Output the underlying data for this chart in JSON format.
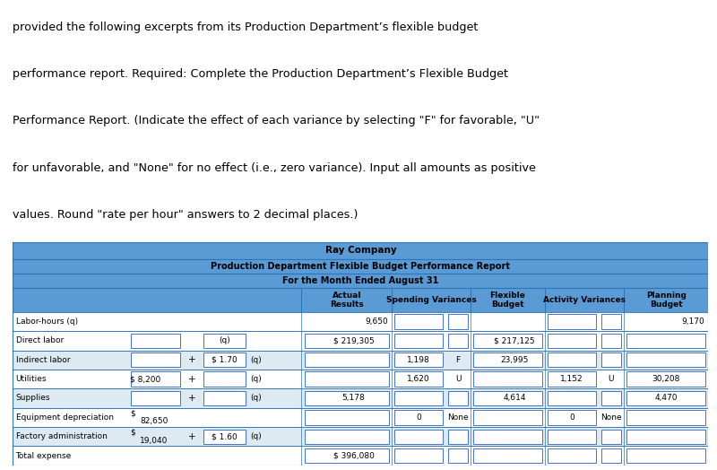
{
  "intro_text": [
    "provided the following excerpts from its Production Department’s flexible budget",
    "performance report. Required: Complete the Production Department’s Flexible Budget",
    "Performance Report. (Indicate the effect of each variance by selecting \"F\" for favorable, \"U\"",
    "for unfavorable, and \"None\" for no effect (i.e., zero variance). Input all amounts as positive",
    "values. Round \"rate per hour\" answers to 2 decimal places.)"
  ],
  "table_title1": "Ray Company",
  "table_title2": "Production Department Flexible Budget Performance Report",
  "table_title3": "For the Month Ended August 31",
  "header_bg": "#5B9BD5",
  "row_bg_light": "#DEEAF1",
  "row_bg_white": "#FFFFFF",
  "table_border": "#2E75B6",
  "rows": [
    {
      "label": "Labor-hours (q)",
      "f1": "",
      "f2": "",
      "f3": "",
      "f4": "",
      "actual": "9,650",
      "spend_var": "",
      "spend_var_label": "",
      "flex_budget": "",
      "act_var": "",
      "act_var_label": "",
      "plan_budget": "9,170"
    },
    {
      "label": "Direct labor",
      "f1": "",
      "f2": "",
      "f3": "(q)",
      "f4": "",
      "actual": "$ 219,305",
      "spend_var": "",
      "spend_var_label": "",
      "flex_budget": "$ 217,125",
      "act_var": "",
      "act_var_label": "",
      "plan_budget": ""
    },
    {
      "label": "Indirect labor",
      "f1": "",
      "f2": "+",
      "f3": "$ 1.70",
      "f4": "(q)",
      "actual": "",
      "spend_var": "1,198",
      "spend_var_label": "F",
      "flex_budget": "23,995",
      "act_var": "",
      "act_var_label": "",
      "plan_budget": ""
    },
    {
      "label": "Utilities",
      "f1": "$ 8,200",
      "f2": "+",
      "f3": "",
      "f4": "(q)",
      "actual": "",
      "spend_var": "1,620",
      "spend_var_label": "U",
      "flex_budget": "",
      "act_var": "1,152",
      "act_var_label": "U",
      "plan_budget": "30,208"
    },
    {
      "label": "Supplies",
      "f1": "",
      "f2": "+",
      "f3": "",
      "f4": "(q)",
      "actual": "5,178",
      "spend_var": "",
      "spend_var_label": "",
      "flex_budget": "4,614",
      "act_var": "",
      "act_var_label": "",
      "plan_budget": "4,470"
    },
    {
      "label": "Equipment depreciation",
      "f1": "$\n82,650",
      "f2": "",
      "f3": "",
      "f4": "",
      "actual": "",
      "spend_var": "0",
      "spend_var_label": "None",
      "flex_budget": "",
      "act_var": "0",
      "act_var_label": "None",
      "plan_budget": ""
    },
    {
      "label": "Factory administration",
      "f1": "$\n19,040",
      "f2": "+",
      "f3": "$ 1.60",
      "f4": "(q)",
      "actual": "",
      "spend_var": "",
      "spend_var_label": "",
      "flex_budget": "",
      "act_var": "",
      "act_var_label": "",
      "plan_budget": ""
    },
    {
      "label": "Total expense",
      "f1": "",
      "f2": "",
      "f3": "",
      "f4": "",
      "actual": "$ 396,080",
      "spend_var": "",
      "spend_var_label": "",
      "flex_budget": "",
      "act_var": "",
      "act_var_label": "",
      "plan_budget": ""
    }
  ]
}
